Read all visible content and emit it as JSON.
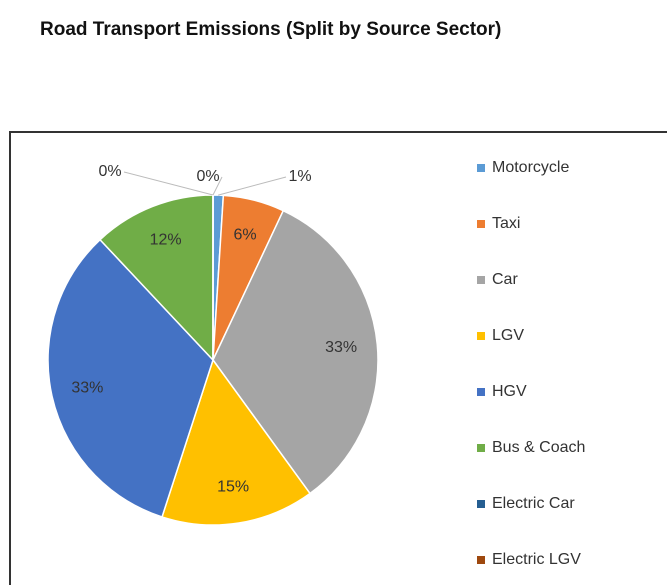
{
  "chart_data": {
    "type": "pie",
    "title": "Road Transport Emissions (Split by Source Sector)",
    "categories": [
      "Motorcycle",
      "Taxi",
      "Car",
      "LGV",
      "HGV",
      "Bus & Coach",
      "Electric Car",
      "Electric LGV"
    ],
    "values": [
      1,
      6,
      33,
      15,
      33,
      12,
      0,
      0
    ],
    "value_labels": [
      "1%",
      "6%",
      "33%",
      "15%",
      "33%",
      "12%",
      "0%",
      "0%"
    ],
    "colors": [
      "#5b9bd5",
      "#ed7d31",
      "#a5a5a5",
      "#ffc000",
      "#4472c4",
      "#70ad47",
      "#255e91",
      "#9e480e"
    ],
    "legend": "right"
  }
}
